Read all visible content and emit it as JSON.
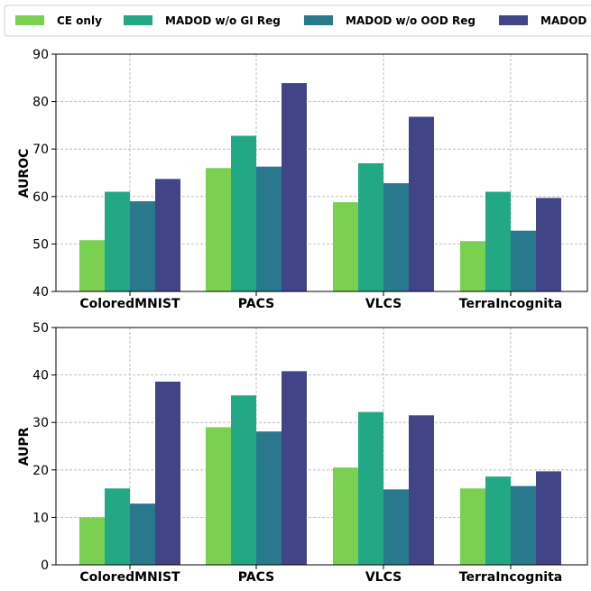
{
  "colors": {
    "series": [
      "#7ad151",
      "#22a884",
      "#2a788e",
      "#414487"
    ]
  },
  "legend": {
    "placement": "top, spanning width",
    "entries": [
      "CE only",
      "MADOD w/o GI Reg",
      "MADOD w/o OOD Reg",
      "MADOD"
    ]
  },
  "chart_data": [
    {
      "type": "bar",
      "title": "",
      "xlabel": "",
      "ylabel": "AUROC",
      "ylim": [
        40,
        90
      ],
      "yticks": [
        40,
        50,
        60,
        70,
        80,
        90
      ],
      "grid": true,
      "categories": [
        "ColoredMNIST",
        "PACS",
        "VLCS",
        "TerraIncognita"
      ],
      "series": [
        {
          "name": "CE only",
          "values": [
            50.8,
            66.0,
            58.8,
            50.6
          ]
        },
        {
          "name": "MADOD w/o GI Reg",
          "values": [
            61.0,
            72.8,
            67.0,
            61.0
          ]
        },
        {
          "name": "MADOD w/o OOD Reg",
          "values": [
            59.0,
            66.3,
            62.8,
            52.8
          ]
        },
        {
          "name": "MADOD",
          "values": [
            63.7,
            83.9,
            76.8,
            59.7
          ]
        }
      ]
    },
    {
      "type": "bar",
      "title": "",
      "xlabel": "",
      "ylabel": "AUPR",
      "ylim": [
        0,
        50
      ],
      "yticks": [
        0,
        10,
        20,
        30,
        40,
        50
      ],
      "grid": true,
      "categories": [
        "ColoredMNIST",
        "PACS",
        "VLCS",
        "TerraIncognita"
      ],
      "series": [
        {
          "name": "CE only",
          "values": [
            10.0,
            29.0,
            20.5,
            16.1
          ]
        },
        {
          "name": "MADOD w/o GI Reg",
          "values": [
            16.1,
            35.7,
            32.2,
            18.6
          ]
        },
        {
          "name": "MADOD w/o OOD Reg",
          "values": [
            12.9,
            28.1,
            15.9,
            16.6
          ]
        },
        {
          "name": "MADOD",
          "values": [
            38.6,
            40.8,
            31.5,
            19.7
          ]
        }
      ]
    }
  ]
}
